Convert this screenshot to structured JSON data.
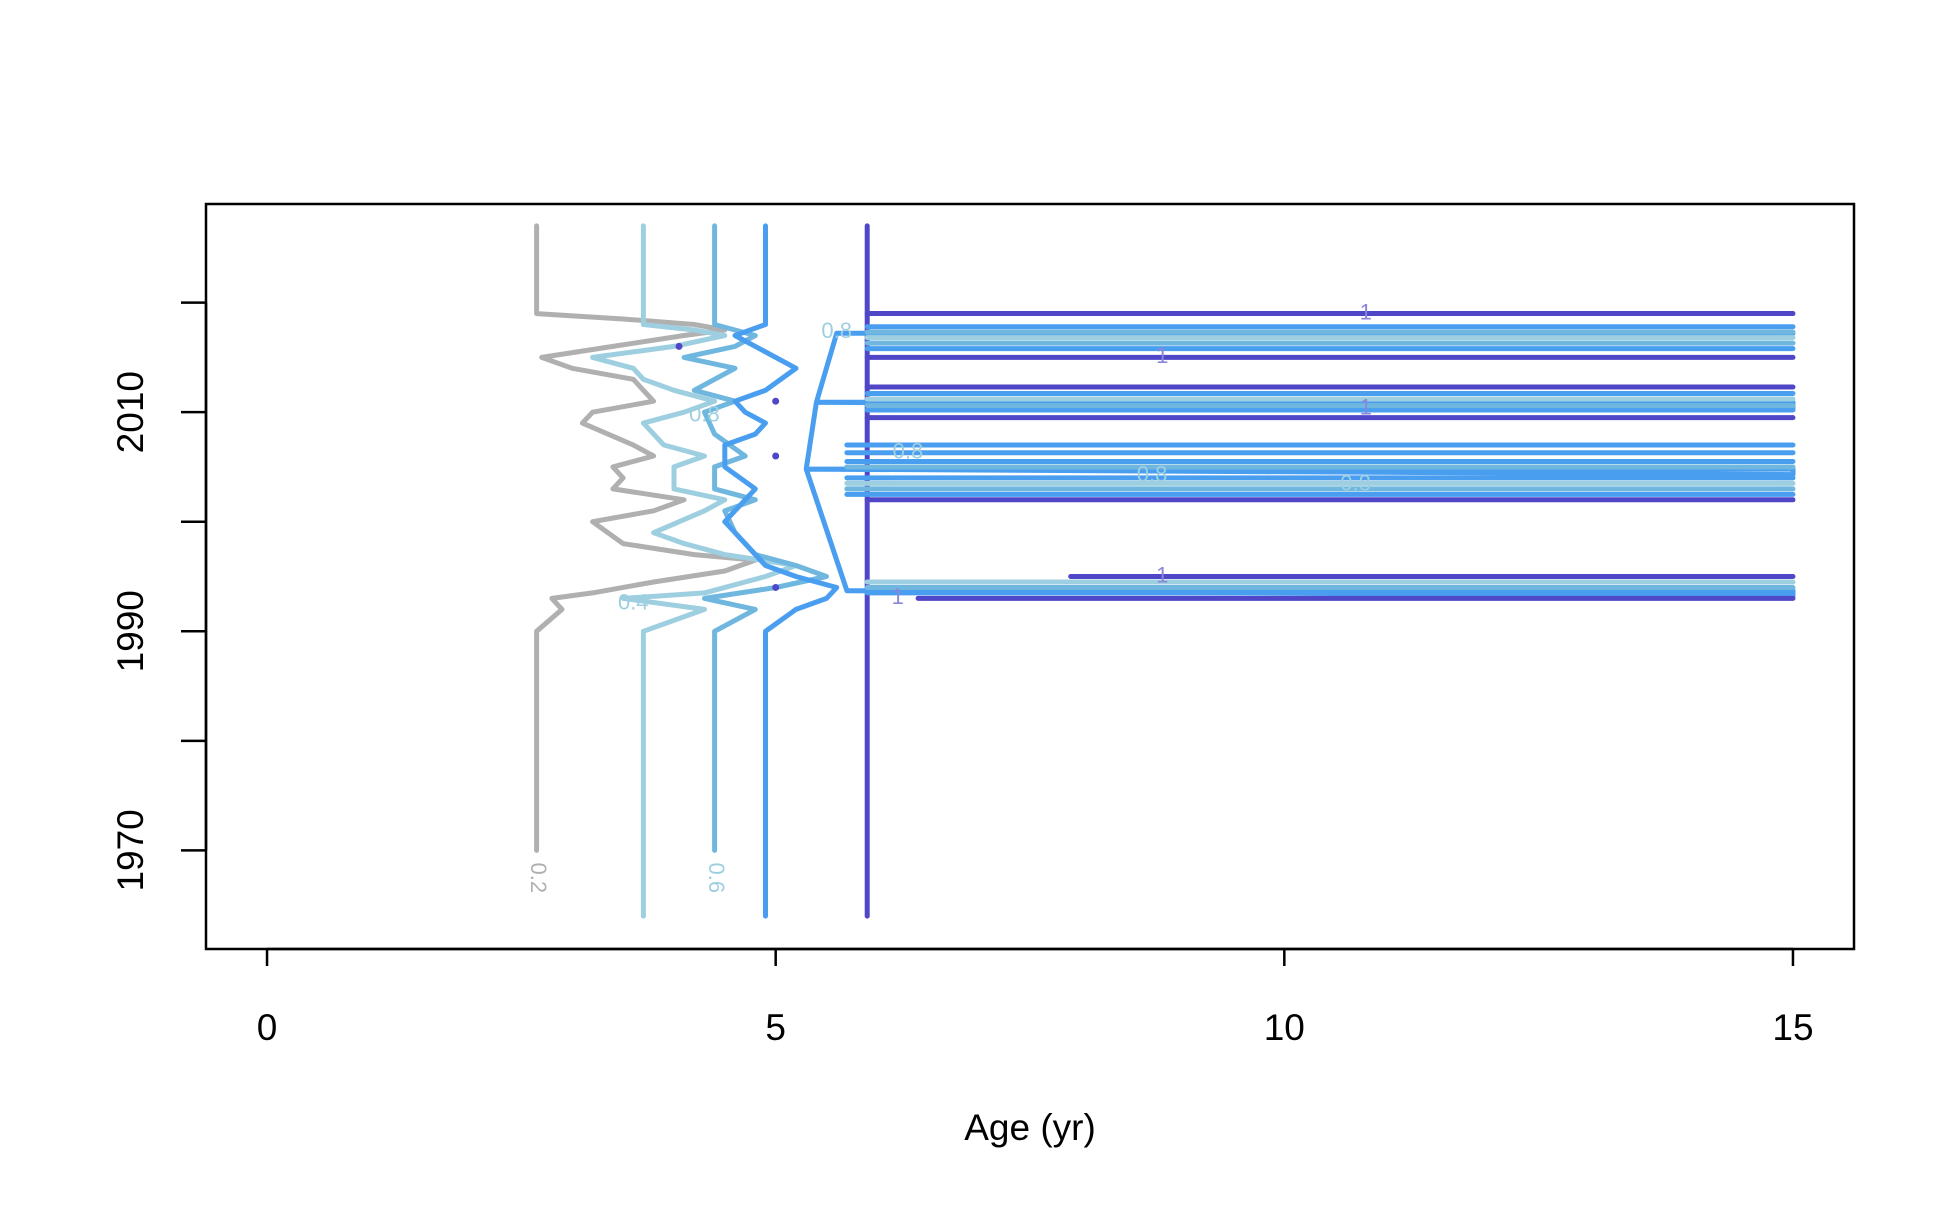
{
  "chart_data": {
    "type": "line",
    "subtype": "contour",
    "title": "",
    "xlabel": "Age (yr)",
    "ylabel": "",
    "xlim": [
      -0.6,
      15.6
    ],
    "ylim": [
      1961,
      2029
    ],
    "x_ticks": [
      0,
      5,
      10,
      15
    ],
    "x_tick_labels": [
      "0",
      "5",
      "10",
      "15"
    ],
    "y_ticks": [
      1970,
      1980,
      1990,
      2000,
      2010,
      2020
    ],
    "y_tick_labels": [
      "1970",
      "",
      "1990",
      "",
      "2010",
      ""
    ],
    "grid": false,
    "legend": "none",
    "series": [
      {
        "level": 0.2,
        "label": "0.2",
        "color": "#b0b0b0",
        "points": [
          [
            2.65,
            1970
          ],
          [
            2.65,
            1990
          ],
          [
            2.9,
            1992
          ],
          [
            2.8,
            1993
          ],
          [
            3.2,
            1993.5
          ],
          [
            3.8,
            1994.5
          ],
          [
            4.5,
            1995.5
          ],
          [
            4.8,
            1996.5
          ],
          [
            4.2,
            1997
          ],
          [
            3.5,
            1998
          ],
          [
            3.2,
            2000
          ],
          [
            3.8,
            2001
          ],
          [
            4.1,
            2002
          ],
          [
            3.4,
            2003
          ],
          [
            3.5,
            2004
          ],
          [
            3.4,
            2005
          ],
          [
            3.8,
            2006
          ],
          [
            3.6,
            2007
          ],
          [
            3.1,
            2009
          ],
          [
            3.2,
            2010
          ],
          [
            3.8,
            2011
          ],
          [
            3.7,
            2012
          ],
          [
            3.6,
            2013
          ],
          [
            3.0,
            2014
          ],
          [
            2.7,
            2015
          ],
          [
            3.4,
            2016
          ],
          [
            4.1,
            2017
          ],
          [
            4.5,
            2017.5
          ],
          [
            4.2,
            2018
          ],
          [
            3.5,
            2018.5
          ],
          [
            2.65,
            2019
          ],
          [
            2.65,
            2027
          ]
        ]
      },
      {
        "level": 0.4,
        "label": "0.4",
        "color": "#9ecfe0",
        "points": [
          [
            3.7,
            1964
          ],
          [
            3.7,
            1990
          ],
          [
            4.3,
            1992
          ],
          [
            3.5,
            1993
          ],
          [
            4.3,
            1993.5
          ],
          [
            4.9,
            1995
          ],
          [
            5.2,
            1996
          ],
          [
            4.5,
            1997
          ],
          [
            4.1,
            1998
          ],
          [
            3.8,
            1999
          ],
          [
            4.3,
            2001
          ],
          [
            4.5,
            2002
          ],
          [
            4.0,
            2003
          ],
          [
            4.0,
            2005
          ],
          [
            4.3,
            2006
          ],
          [
            3.9,
            2007
          ],
          [
            3.7,
            2009
          ],
          [
            4.1,
            2010
          ],
          [
            4.4,
            2011
          ],
          [
            4.0,
            2012
          ],
          [
            3.7,
            2013
          ],
          [
            3.6,
            2014
          ],
          [
            3.2,
            2015
          ],
          [
            4.0,
            2016
          ],
          [
            4.5,
            2017
          ],
          [
            4.2,
            2017.5
          ],
          [
            3.7,
            2018
          ],
          [
            3.7,
            2027
          ]
        ]
      },
      {
        "level": 0.6,
        "label": "0.6",
        "color": "#6fb7df",
        "points": [
          [
            4.4,
            1970
          ],
          [
            4.4,
            1990
          ],
          [
            4.8,
            1992
          ],
          [
            4.3,
            1993
          ],
          [
            5.0,
            1994
          ],
          [
            5.5,
            1995
          ],
          [
            5.2,
            1996
          ],
          [
            4.8,
            1997
          ],
          [
            4.6,
            1999
          ],
          [
            4.5,
            2001
          ],
          [
            4.8,
            2002
          ],
          [
            4.4,
            2003
          ],
          [
            4.4,
            2005
          ],
          [
            4.7,
            2006
          ],
          [
            4.4,
            2008
          ],
          [
            4.3,
            2010
          ],
          [
            4.6,
            2011
          ],
          [
            4.2,
            2012
          ],
          [
            4.4,
            2013
          ],
          [
            4.6,
            2014
          ],
          [
            4.1,
            2015
          ],
          [
            4.6,
            2016
          ],
          [
            4.8,
            2017
          ],
          [
            4.4,
            2018
          ],
          [
            4.4,
            2027
          ]
        ]
      },
      {
        "level": 0.8,
        "label": "0.8",
        "color": "#4a9ef0",
        "points": [
          [
            4.9,
            1964
          ],
          [
            4.9,
            1990
          ],
          [
            5.2,
            1992
          ],
          [
            5.5,
            1993
          ],
          [
            5.6,
            1994
          ],
          [
            5.2,
            1995
          ],
          [
            4.9,
            1996
          ],
          [
            4.7,
            1998
          ],
          [
            4.5,
            2000
          ],
          [
            4.7,
            2002
          ],
          [
            4.8,
            2003
          ],
          [
            4.5,
            2005
          ],
          [
            4.5,
            2007
          ],
          [
            4.8,
            2008
          ],
          [
            4.9,
            2009
          ],
          [
            4.7,
            2010
          ],
          [
            4.6,
            2011
          ],
          [
            4.9,
            2012
          ],
          [
            5.2,
            2014
          ],
          [
            4.8,
            2016
          ],
          [
            4.6,
            2017
          ],
          [
            4.9,
            2018
          ],
          [
            4.9,
            2027
          ]
        ]
      },
      {
        "level": 1,
        "label": "1",
        "color": "#5046c8",
        "points": [
          [
            5.9,
            1964
          ],
          [
            5.9,
            2027
          ]
        ]
      },
      {
        "level": 0.8,
        "label": "0.8",
        "color": "#4a9ef0",
        "horizontal_bands": true,
        "points": [
          [
            5.7,
            1993.7
          ],
          [
            15,
            1993.7
          ],
          [
            15,
            1993.2
          ],
          [
            5.7,
            1993.7
          ],
          [
            5.3,
            2004.8
          ],
          [
            15,
            2004.8
          ],
          [
            15,
            2004.3
          ],
          [
            5.3,
            2004.8
          ],
          [
            5.4,
            2010.9
          ],
          [
            15,
            2010.9
          ],
          [
            15,
            2010.4
          ],
          [
            5.4,
            2010.9
          ],
          [
            5.6,
            2017.2
          ],
          [
            15,
            2017.2
          ]
        ]
      }
    ],
    "hlines": [
      {
        "y": 1993,
        "x0": 6.4,
        "x1": 15,
        "color": "#5046c8"
      },
      {
        "y": 1993.5,
        "x0": 5.9,
        "x1": 15,
        "color": "#4a9ef0"
      },
      {
        "y": 1994,
        "x0": 5.9,
        "x1": 15,
        "color": "#6fb7df"
      },
      {
        "y": 1994.5,
        "x0": 5.9,
        "x1": 15,
        "color": "#9ecfe0"
      },
      {
        "y": 1995,
        "x0": 7.9,
        "x1": 15,
        "color": "#5046c8"
      },
      {
        "y": 2002,
        "x0": 5.9,
        "x1": 15,
        "color": "#5046c8"
      },
      {
        "y": 2002.5,
        "x0": 5.7,
        "x1": 15,
        "color": "#4a9ef0"
      },
      {
        "y": 2003,
        "x0": 5.7,
        "x1": 15,
        "color": "#6fb7df"
      },
      {
        "y": 2003.5,
        "x0": 5.7,
        "x1": 15,
        "color": "#9ecfe0"
      },
      {
        "y": 2004,
        "x0": 5.7,
        "x1": 15,
        "color": "#4a9ef0"
      },
      {
        "y": 2005,
        "x0": 5.7,
        "x1": 15,
        "color": "#6fb7df"
      },
      {
        "y": 2005.5,
        "x0": 5.7,
        "x1": 15,
        "color": "#4a9ef0"
      },
      {
        "y": 2006.3,
        "x0": 5.7,
        "x1": 15,
        "color": "#4a9ef0"
      },
      {
        "y": 2007,
        "x0": 5.7,
        "x1": 15,
        "color": "#4a9ef0"
      },
      {
        "y": 2009.5,
        "x0": 5.9,
        "x1": 15,
        "color": "#5046c8"
      },
      {
        "y": 2010.2,
        "x0": 5.9,
        "x1": 15,
        "color": "#4a9ef0"
      },
      {
        "y": 2010.6,
        "x0": 5.9,
        "x1": 15,
        "color": "#6fb7df"
      },
      {
        "y": 2011.2,
        "x0": 5.9,
        "x1": 15,
        "color": "#9ecfe0"
      },
      {
        "y": 2011.7,
        "x0": 5.9,
        "x1": 15,
        "color": "#4a9ef0"
      },
      {
        "y": 2012.3,
        "x0": 5.9,
        "x1": 15,
        "color": "#5046c8"
      },
      {
        "y": 2015,
        "x0": 5.9,
        "x1": 15,
        "color": "#5046c8"
      },
      {
        "y": 2015.8,
        "x0": 5.9,
        "x1": 15,
        "color": "#4a9ef0"
      },
      {
        "y": 2016.3,
        "x0": 5.9,
        "x1": 15,
        "color": "#6fb7df"
      },
      {
        "y": 2016.8,
        "x0": 5.9,
        "x1": 15,
        "color": "#9ecfe0"
      },
      {
        "y": 2017.3,
        "x0": 5.9,
        "x1": 15,
        "color": "#6fb7df"
      },
      {
        "y": 2017.8,
        "x0": 5.9,
        "x1": 15,
        "color": "#4a9ef0"
      },
      {
        "y": 2019,
        "x0": 5.9,
        "x1": 15,
        "color": "#5046c8"
      }
    ],
    "contour_labels": [
      {
        "text": "0.2",
        "x": 2.65,
        "y": 1967.5,
        "color": "#b0b0b0",
        "rotate": true
      },
      {
        "text": "0.6",
        "x": 4.4,
        "y": 1967.5,
        "color": "#9ecfe0",
        "rotate": true
      },
      {
        "text": "0.4",
        "x": 3.6,
        "y": 1992.5,
        "color": "#9ecfe0"
      },
      {
        "text": "0.8",
        "x": 4.3,
        "y": 2009.7,
        "color": "#9ecfe0"
      },
      {
        "text": "0.8",
        "x": 5.6,
        "y": 2017.3,
        "color": "#9ecfe0"
      },
      {
        "text": "0.8",
        "x": 6.3,
        "y": 2006.3,
        "color": "#9ecfe0"
      },
      {
        "text": "0.8",
        "x": 8.7,
        "y": 2004.2,
        "color": "#9ecfe0"
      },
      {
        "text": "0.8",
        "x": 10.7,
        "y": 2003.4,
        "color": "#9ecfe0"
      },
      {
        "text": "1",
        "x": 10.8,
        "y": 2019,
        "color": "#8a86d8"
      },
      {
        "text": "1",
        "x": 8.8,
        "y": 2015,
        "color": "#8a86d8"
      },
      {
        "text": "1",
        "x": 10.8,
        "y": 2010.3,
        "color": "#8a86d8"
      },
      {
        "text": "1",
        "x": 8.8,
        "y": 1995,
        "color": "#8a86d8"
      },
      {
        "text": "1",
        "x": 6.2,
        "y": 1993,
        "color": "#8a86d8"
      }
    ],
    "points": [
      {
        "x": 4.05,
        "y": 2016,
        "color": "#5046c8"
      },
      {
        "x": 5.0,
        "y": 1994,
        "color": "#5046c8"
      },
      {
        "x": 5.0,
        "y": 2011,
        "color": "#5046c8"
      },
      {
        "x": 5.0,
        "y": 2006,
        "color": "#5046c8"
      }
    ]
  },
  "colors": {
    "axis": "#000000",
    "background": "#ffffff"
  }
}
